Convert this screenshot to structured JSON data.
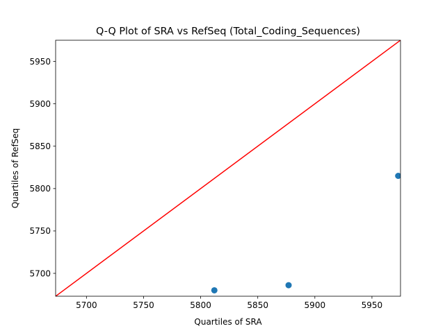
{
  "chart_data": {
    "type": "scatter",
    "title": "Q-Q Plot of SRA vs RefSeq (Total_Coding_Sequences)",
    "xlabel": "Quartiles of SRA",
    "ylabel": "Quartiles of RefSeq",
    "xlim": [
      5673,
      5975
    ],
    "ylim": [
      5673,
      5975
    ],
    "xticks": [
      5700,
      5750,
      5800,
      5850,
      5900,
      5950
    ],
    "yticks": [
      5700,
      5750,
      5800,
      5850,
      5900,
      5950
    ],
    "points": [
      {
        "x": 5812,
        "y": 5680
      },
      {
        "x": 5877,
        "y": 5686
      },
      {
        "x": 5973,
        "y": 5815
      }
    ],
    "reference_line": {
      "from": [
        5673,
        5673
      ],
      "to": [
        5975,
        5975
      ],
      "color": "#ff0000"
    },
    "point_color": "#1f77b4",
    "grid": false
  }
}
